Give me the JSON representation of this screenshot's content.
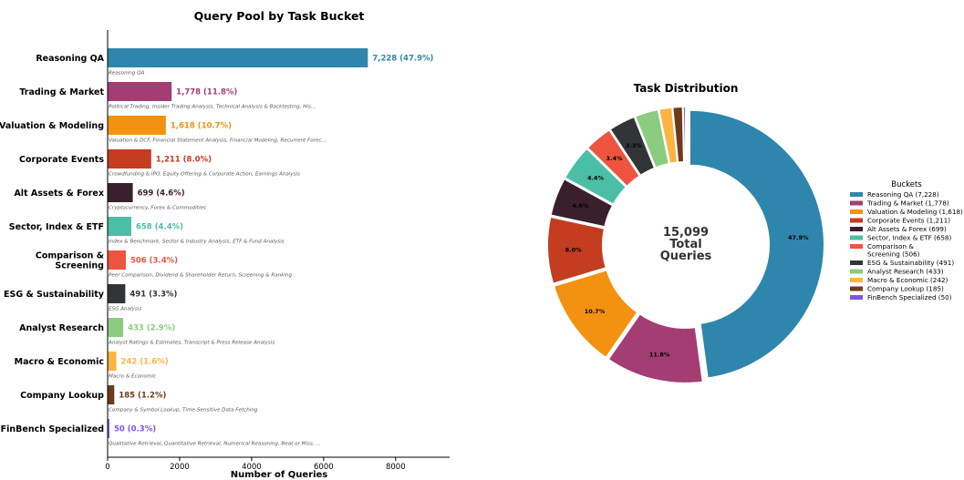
{
  "bar_chart": {
    "title": "Query Pool by Task Bucket",
    "xlabel": "Number of Queries",
    "xlim": [
      0,
      9500
    ],
    "xticks": [
      0,
      2000,
      4000,
      6000,
      8000
    ],
    "xtick_labels": [
      "0",
      "2000",
      "4000",
      "6000",
      "8000"
    ]
  },
  "donut_chart": {
    "title": "Task Distribution",
    "center_label": [
      "15,099",
      "Total",
      "Queries"
    ],
    "legend_title": "Buckets"
  },
  "chart_data": [
    {
      "type": "bar",
      "orientation": "horizontal",
      "title": "Query Pool by Task Bucket",
      "xlabel": "Number of Queries",
      "xlim": [
        0,
        9500
      ],
      "categories": [
        "Reasoning QA",
        "Trading & Market",
        "Valuation & Modeling",
        "Corporate Events",
        "Alt Assets & Forex",
        "Sector, Index & ETF",
        "Comparison & Screening",
        "ESG & Sustainability",
        "Analyst Research",
        "Macro & Economic",
        "Company Lookup",
        "FinBench Specialized"
      ],
      "category_lines": [
        [
          "Reasoning QA"
        ],
        [
          "Trading & Market"
        ],
        [
          "Valuation & Modeling"
        ],
        [
          "Corporate Events"
        ],
        [
          "Alt Assets & Forex"
        ],
        [
          "Sector, Index & ETF"
        ],
        [
          "Comparison &",
          "Screening"
        ],
        [
          "ESG & Sustainability"
        ],
        [
          "Analyst Research"
        ],
        [
          "Macro & Economic"
        ],
        [
          "Company Lookup"
        ],
        [
          "FinBench Specialized"
        ]
      ],
      "values": [
        7228,
        1778,
        1618,
        1211,
        699,
        658,
        506,
        491,
        433,
        242,
        185,
        50
      ],
      "value_labels": [
        "7,228  (47.9%)",
        "1,778  (11.8%)",
        "1,618  (10.7%)",
        "1,211  (8.0%)",
        "699  (4.6%)",
        "658  (4.4%)",
        "506  (3.4%)",
        "491  (3.3%)",
        "433  (2.9%)",
        "242  (1.6%)",
        "185  (1.2%)",
        "50  (0.3%)"
      ],
      "subtitles": [
        "Reasoning QA",
        "Political Trading, Insider Trading Analysis, Technical Analysis & Backtesting, His...",
        "Valuation & DCF, Financial Statement Analysis, Financial Modeling, Recurrent Forec...",
        "Crowdfunding & IPO, Equity Offering & Corporate Action, Earnings Analysis",
        "Cryptocurrency, Forex & Commodities",
        "Index & Benchmark, Sector & Industry Analysis, ETF & Fund Analysis",
        "Peer Comparison, Dividend & Shareholder Return, Screening & Ranking",
        "ESG Analysis",
        "Analyst Ratings & Estimates, Transcript & Press Release Analysis",
        "Macro & Economic",
        "Company & Symbol Lookup, Time-Sensitive Data Fetching",
        "Qualitative Retrieval, Quantitative Retrieval, Numerical Reasoning, Beat or Miss, ..."
      ],
      "colors": [
        "#2f86ad",
        "#a33d74",
        "#f39211",
        "#c43d21",
        "#3a1f2c",
        "#4bbfa5",
        "#ef5440",
        "#323437",
        "#8bcc81",
        "#fbb341",
        "#6b3b1c",
        "#7b54e6"
      ],
      "label_colors": [
        "#2f86ad",
        "#a33d74",
        "#f39211",
        "#c43d21",
        "#3a1f2c",
        "#4bbfa5",
        "#ef5440",
        "#323437",
        "#8bcc81",
        "#fbb341",
        "#6b3b1c",
        "#7b54e6"
      ]
    },
    {
      "type": "pie",
      "variant": "donut",
      "title": "Task Distribution",
      "labels": [
        "Reasoning QA",
        "Trading & Market",
        "Valuation & Modeling",
        "Corporate Events",
        "Alt Assets & Forex",
        "Sector, Index & ETF",
        "Comparison & Screening",
        "ESG & Sustainability",
        "Analyst Research",
        "Macro & Economic",
        "Company Lookup",
        "FinBench Specialized"
      ],
      "values": [
        7228,
        1778,
        1618,
        1211,
        699,
        658,
        506,
        491,
        433,
        242,
        185,
        50
      ],
      "slice_labels": [
        "47.9%",
        "11.8%",
        "10.7%",
        "8.0%",
        "4.6%",
        "4.4%",
        "3.4%",
        "3.3%",
        "",
        "",
        "",
        ""
      ],
      "legend_entries": [
        [
          "Reasoning QA  (7,228)"
        ],
        [
          "Trading & Market  (1,778)"
        ],
        [
          "Valuation & Modeling  (1,618)"
        ],
        [
          "Corporate Events  (1,211)"
        ],
        [
          "Alt Assets & Forex  (699)"
        ],
        [
          "Sector, Index & ETF  (658)"
        ],
        [
          "Comparison &",
          "Screening  (506)"
        ],
        [
          "ESG & Sustainability  (491)"
        ],
        [
          "Analyst Research  (433)"
        ],
        [
          "Macro & Economic  (242)"
        ],
        [
          "Company Lookup  (185)"
        ],
        [
          "FinBench Specialized  (50)"
        ]
      ],
      "legend_placement": "right",
      "colors": [
        "#2f86ad",
        "#a33d74",
        "#f39211",
        "#c43d21",
        "#3a1f2c",
        "#4bbfa5",
        "#ef5440",
        "#323437",
        "#8bcc81",
        "#fbb341",
        "#6b3b1c",
        "#7b54e6"
      ]
    }
  ]
}
